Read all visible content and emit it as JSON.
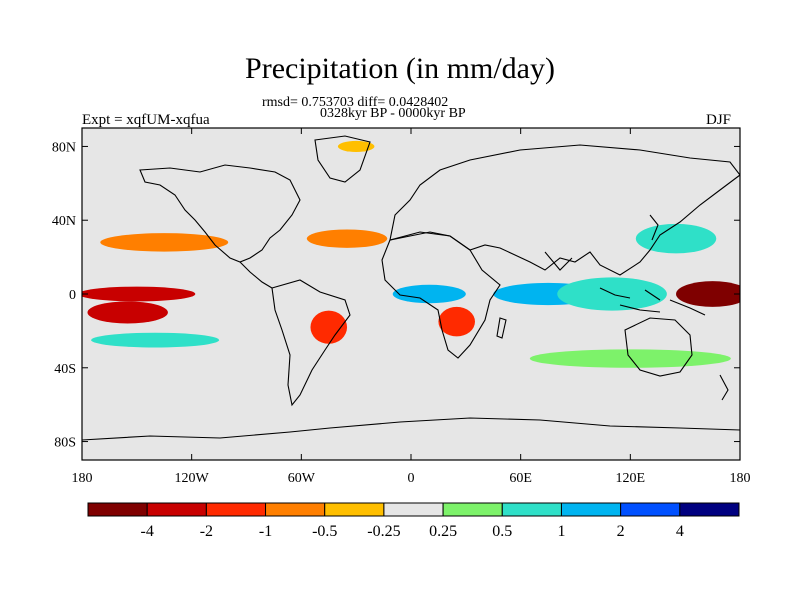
{
  "chart_data": {
    "type": "heatmap",
    "title": "Precipitation (in mm/day)",
    "subtitle_stats": "rmsd= 0.753703 diff= 0.0428402",
    "subtitle_period": "0328kyr BP - 0000kyr BP",
    "left_label": "Expt = xqfUM-xqfua",
    "right_label": "DJF",
    "x_ticks": [
      "180",
      "120W",
      "60W",
      "0",
      "60E",
      "120E",
      "180"
    ],
    "x_tick_values": [
      -180,
      -120,
      -60,
      0,
      60,
      120,
      180
    ],
    "y_ticks": [
      "80N",
      "40N",
      "0",
      "40S",
      "80S"
    ],
    "y_tick_values": [
      80,
      40,
      0,
      -40,
      -80
    ],
    "xlim": [
      -180,
      180
    ],
    "ylim": [
      -90,
      90
    ],
    "colorbar": {
      "colors": [
        "#7f0000",
        "#c80000",
        "#ff2a00",
        "#ff7f00",
        "#ffbf00",
        "#e6e6e6",
        "#7df26a",
        "#2fe0c8",
        "#00b4f0",
        "#0050ff",
        "#000080"
      ],
      "labels": [
        "-4",
        "-2",
        "-1",
        "-0.5",
        "-0.25",
        "0.25",
        "0.5",
        "1",
        "2",
        "4"
      ]
    },
    "regions": [
      {
        "lon": 165,
        "lat": 0,
        "rx": 20,
        "ry": 7,
        "level": 0
      },
      {
        "lon": -150,
        "lat": 0,
        "rx": 32,
        "ry": 4,
        "level": 1
      },
      {
        "lon": -155,
        "lat": -10,
        "rx": 22,
        "ry": 6,
        "level": 1
      },
      {
        "lon": -135,
        "lat": 28,
        "rx": 35,
        "ry": 5,
        "level": 3
      },
      {
        "lon": -35,
        "lat": 30,
        "rx": 22,
        "ry": 5,
        "level": 3
      },
      {
        "lon": -45,
        "lat": -18,
        "rx": 10,
        "ry": 9,
        "level": 2
      },
      {
        "lon": 25,
        "lat": -15,
        "rx": 10,
        "ry": 8,
        "level": 2
      },
      {
        "lon": 10,
        "lat": 0,
        "rx": 20,
        "ry": 5,
        "level": 8
      },
      {
        "lon": 75,
        "lat": 0,
        "rx": 30,
        "ry": 6,
        "level": 8
      },
      {
        "lon": 110,
        "lat": 0,
        "rx": 30,
        "ry": 9,
        "level": 7
      },
      {
        "lon": 145,
        "lat": 30,
        "rx": 22,
        "ry": 8,
        "level": 7
      },
      {
        "lon": 120,
        "lat": -35,
        "rx": 55,
        "ry": 5,
        "level": 6
      },
      {
        "lon": -140,
        "lat": -25,
        "rx": 35,
        "ry": 4,
        "level": 7
      },
      {
        "lon": -30,
        "lat": 80,
        "rx": 10,
        "ry": 3,
        "level": 4
      }
    ]
  }
}
